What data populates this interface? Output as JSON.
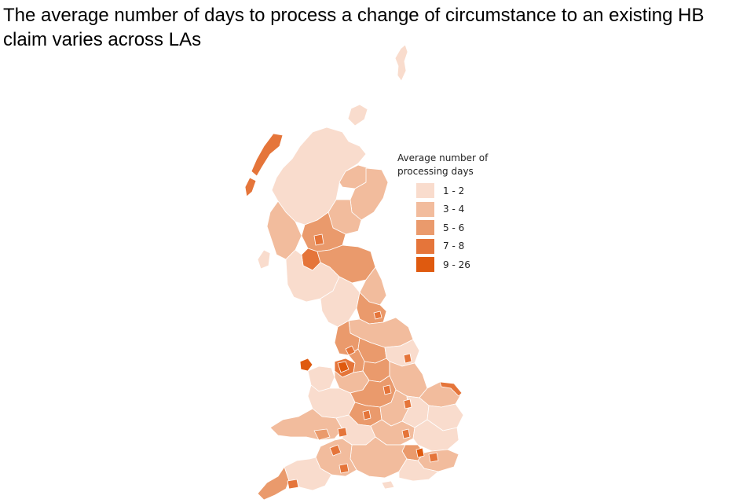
{
  "title": "The average number of days to process a change of circumstance to an existing HB claim varies across LAs",
  "legend": {
    "title": "Average number of processing days",
    "classes": [
      {
        "label": "1 - 2",
        "color": "#f9dccd"
      },
      {
        "label": "3 - 4",
        "color": "#f2bc9d"
      },
      {
        "label": "5 - 6",
        "color": "#ea9a6c"
      },
      {
        "label": "7 - 8",
        "color": "#e5753a"
      },
      {
        "label": "9 - 26",
        "color": "#df5a0f"
      }
    ]
  }
}
